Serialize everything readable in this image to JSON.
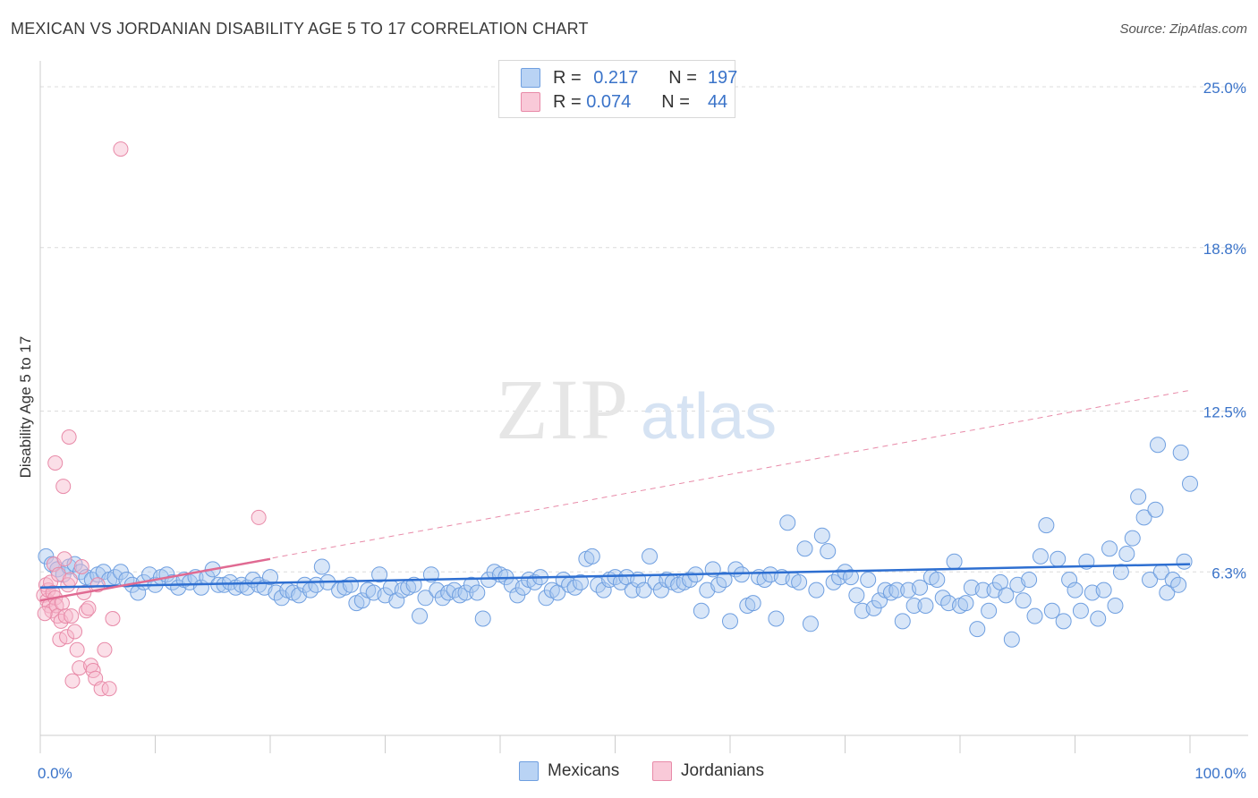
{
  "title": "MEXICAN VS JORDANIAN DISABILITY AGE 5 TO 17 CORRELATION CHART",
  "source": "Source: ZipAtlas.com",
  "watermark": {
    "zip": "ZIP",
    "atlas": "atlas"
  },
  "legend": {
    "rows": [
      {
        "r_label": "R =",
        "r_value": "0.217",
        "n_label": "N =",
        "n_value": "197"
      },
      {
        "r_label": "R =",
        "r_value": "0.074",
        "n_label": "N =",
        "n_value": "44"
      }
    ]
  },
  "bottom_legend": {
    "mexicans": "Mexicans",
    "jordanians": "Jordanians"
  },
  "colors": {
    "mexicans_fill": "#a9c8f0",
    "mexicans_stroke": "#6f9fe0",
    "mexicans_line": "#2e6fd1",
    "jordanians_fill": "#f6b8cb",
    "jordanians_stroke": "#e88aa8",
    "jordanians_line": "#e06a92",
    "tick_label": "#3a73c9",
    "grid": "#dcdcdc"
  },
  "chart_data": {
    "type": "scatter",
    "title": "MEXICAN VS JORDANIAN DISABILITY AGE 5 TO 17 CORRELATION CHART",
    "xlabel": "",
    "ylabel": "Disability Age 5 to 17",
    "xlim": [
      0,
      100
    ],
    "ylim": [
      0,
      25.0
    ],
    "x_tick_labels": [
      "0.0%",
      "100.0%"
    ],
    "y_ticks": [
      6.3,
      12.5,
      18.8,
      25.0
    ],
    "y_tick_labels": [
      "6.3%",
      "12.5%",
      "18.8%",
      "25.0%"
    ],
    "grid": "horizontal dashed",
    "legend_position": "top-center",
    "series": [
      {
        "name": "Mexicans",
        "r": 0.217,
        "n": 197,
        "trend": {
          "x": [
            0,
            100
          ],
          "y": [
            5.7,
            6.6
          ]
        },
        "points": [
          [
            0.5,
            6.9
          ],
          [
            1,
            6.6
          ],
          [
            1.5,
            6.4
          ],
          [
            2,
            6.2
          ],
          [
            2.5,
            6.5
          ],
          [
            3,
            6.6
          ],
          [
            3.5,
            6.3
          ],
          [
            4,
            6.1
          ],
          [
            4.5,
            6.0
          ],
          [
            5,
            6.2
          ],
          [
            5.5,
            6.3
          ],
          [
            6,
            6.0
          ],
          [
            6.5,
            6.1
          ],
          [
            7,
            6.3
          ],
          [
            7.5,
            6.0
          ],
          [
            8,
            5.8
          ],
          [
            8.5,
            5.5
          ],
          [
            9,
            5.9
          ],
          [
            9.5,
            6.2
          ],
          [
            10,
            5.8
          ],
          [
            10.5,
            6.1
          ],
          [
            11,
            6.2
          ],
          [
            11.5,
            5.9
          ],
          [
            12,
            5.7
          ],
          [
            12.5,
            6.0
          ],
          [
            13,
            5.9
          ],
          [
            13.5,
            6.1
          ],
          [
            14,
            5.7
          ],
          [
            14.5,
            6.1
          ],
          [
            15,
            6.4
          ],
          [
            15.5,
            5.8
          ],
          [
            16,
            5.8
          ],
          [
            16.5,
            5.9
          ],
          [
            17,
            5.7
          ],
          [
            17.5,
            5.8
          ],
          [
            18,
            5.7
          ],
          [
            18.5,
            6.0
          ],
          [
            19,
            5.8
          ],
          [
            19.5,
            5.7
          ],
          [
            20,
            6.1
          ],
          [
            20.5,
            5.5
          ],
          [
            21,
            5.3
          ],
          [
            21.5,
            5.6
          ],
          [
            22,
            5.5
          ],
          [
            22.5,
            5.4
          ],
          [
            23,
            5.8
          ],
          [
            23.5,
            5.6
          ],
          [
            24,
            5.8
          ],
          [
            24.5,
            6.5
          ],
          [
            25,
            5.9
          ],
          [
            26,
            5.6
          ],
          [
            26.5,
            5.7
          ],
          [
            27,
            5.8
          ],
          [
            27.5,
            5.1
          ],
          [
            28,
            5.2
          ],
          [
            28.5,
            5.6
          ],
          [
            29,
            5.5
          ],
          [
            29.5,
            6.2
          ],
          [
            30,
            5.4
          ],
          [
            30.5,
            5.7
          ],
          [
            31,
            5.2
          ],
          [
            31.5,
            5.6
          ],
          [
            32,
            5.7
          ],
          [
            32.5,
            5.8
          ],
          [
            33,
            4.6
          ],
          [
            33.5,
            5.3
          ],
          [
            34,
            6.2
          ],
          [
            34.5,
            5.6
          ],
          [
            35,
            5.3
          ],
          [
            35.5,
            5.5
          ],
          [
            36,
            5.6
          ],
          [
            36.5,
            5.4
          ],
          [
            37,
            5.5
          ],
          [
            37.5,
            5.8
          ],
          [
            38,
            5.5
          ],
          [
            38.5,
            4.5
          ],
          [
            39,
            6.0
          ],
          [
            39.5,
            6.3
          ],
          [
            40,
            6.2
          ],
          [
            40.5,
            6.1
          ],
          [
            41,
            5.8
          ],
          [
            41.5,
            5.4
          ],
          [
            42,
            5.7
          ],
          [
            42.5,
            6.0
          ],
          [
            43,
            5.9
          ],
          [
            43.5,
            6.1
          ],
          [
            44,
            5.3
          ],
          [
            44.5,
            5.6
          ],
          [
            45,
            5.5
          ],
          [
            45.5,
            6.0
          ],
          [
            46,
            5.8
          ],
          [
            46.5,
            5.7
          ],
          [
            47,
            5.9
          ],
          [
            47.5,
            6.8
          ],
          [
            48,
            6.9
          ],
          [
            48.5,
            5.8
          ],
          [
            49,
            5.6
          ],
          [
            49.5,
            6.0
          ],
          [
            50,
            6.1
          ],
          [
            50.5,
            5.9
          ],
          [
            51,
            6.1
          ],
          [
            51.5,
            5.6
          ],
          [
            52,
            6.0
          ],
          [
            52.5,
            5.6
          ],
          [
            53,
            6.9
          ],
          [
            53.5,
            5.9
          ],
          [
            54,
            5.6
          ],
          [
            54.5,
            6.0
          ],
          [
            55,
            5.9
          ],
          [
            55.5,
            5.8
          ],
          [
            56,
            5.9
          ],
          [
            56.5,
            6.0
          ],
          [
            57,
            6.2
          ],
          [
            57.5,
            4.8
          ],
          [
            58,
            5.6
          ],
          [
            58.5,
            6.4
          ],
          [
            59,
            5.8
          ],
          [
            59.5,
            6.0
          ],
          [
            60,
            4.4
          ],
          [
            60.5,
            6.4
          ],
          [
            61,
            6.2
          ],
          [
            61.5,
            5.0
          ],
          [
            62,
            5.1
          ],
          [
            62.5,
            6.1
          ],
          [
            63,
            6.0
          ],
          [
            63.5,
            6.2
          ],
          [
            64,
            4.5
          ],
          [
            64.5,
            6.1
          ],
          [
            65,
            8.2
          ],
          [
            65.5,
            6.0
          ],
          [
            66,
            5.9
          ],
          [
            66.5,
            7.2
          ],
          [
            67,
            4.3
          ],
          [
            67.5,
            5.6
          ],
          [
            68,
            7.7
          ],
          [
            68.5,
            7.1
          ],
          [
            69,
            5.9
          ],
          [
            69.5,
            6.1
          ],
          [
            70,
            6.3
          ],
          [
            70.5,
            6.1
          ],
          [
            71,
            5.4
          ],
          [
            71.5,
            4.8
          ],
          [
            72,
            6.0
          ],
          [
            72.5,
            4.9
          ],
          [
            73,
            5.2
          ],
          [
            73.5,
            5.6
          ],
          [
            74,
            5.5
          ],
          [
            74.5,
            5.6
          ],
          [
            75,
            4.4
          ],
          [
            75.5,
            5.6
          ],
          [
            76,
            5.0
          ],
          [
            76.5,
            5.7
          ],
          [
            77,
            5.0
          ],
          [
            77.5,
            6.1
          ],
          [
            78,
            6.0
          ],
          [
            78.5,
            5.3
          ],
          [
            79,
            5.1
          ],
          [
            79.5,
            6.7
          ],
          [
            80,
            5.0
          ],
          [
            80.5,
            5.1
          ],
          [
            81,
            5.7
          ],
          [
            81.5,
            4.1
          ],
          [
            82,
            5.6
          ],
          [
            82.5,
            4.8
          ],
          [
            83,
            5.6
          ],
          [
            83.5,
            5.9
          ],
          [
            84,
            5.4
          ],
          [
            84.5,
            3.7
          ],
          [
            85,
            5.8
          ],
          [
            85.5,
            5.2
          ],
          [
            86,
            6.0
          ],
          [
            86.5,
            4.6
          ],
          [
            87,
            6.9
          ],
          [
            87.5,
            8.1
          ],
          [
            88,
            4.8
          ],
          [
            88.5,
            6.8
          ],
          [
            89,
            4.4
          ],
          [
            89.5,
            6.0
          ],
          [
            90,
            5.6
          ],
          [
            90.5,
            4.8
          ],
          [
            91,
            6.7
          ],
          [
            91.5,
            5.5
          ],
          [
            92,
            4.5
          ],
          [
            92.5,
            5.6
          ],
          [
            93,
            7.2
          ],
          [
            93.5,
            5.0
          ],
          [
            94,
            6.3
          ],
          [
            94.5,
            7.0
          ],
          [
            95,
            7.6
          ],
          [
            95.5,
            9.2
          ],
          [
            96,
            8.4
          ],
          [
            96.5,
            6.0
          ],
          [
            97,
            8.7
          ],
          [
            97.5,
            6.3
          ],
          [
            98,
            5.5
          ],
          [
            98.5,
            6.0
          ],
          [
            99,
            5.8
          ],
          [
            99.5,
            6.7
          ],
          [
            100,
            9.7
          ],
          [
            99.2,
            10.9
          ],
          [
            97.2,
            11.2
          ]
        ]
      },
      {
        "name": "Jordanians",
        "r": 0.074,
        "n": 44,
        "trend": {
          "x": [
            0,
            20
          ],
          "y": [
            5.2,
            6.8
          ]
        },
        "trend_extended": {
          "x": [
            0,
            100
          ],
          "y": [
            5.2,
            13.3
          ]
        },
        "points": [
          [
            0.3,
            5.4
          ],
          [
            0.5,
            5.8
          ],
          [
            0.6,
            5.2
          ],
          [
            0.7,
            5.6
          ],
          [
            0.8,
            5.0
          ],
          [
            0.9,
            5.9
          ],
          [
            1.0,
            4.8
          ],
          [
            1.1,
            5.5
          ],
          [
            1.2,
            6.6
          ],
          [
            1.3,
            5.3
          ],
          [
            1.4,
            5.0
          ],
          [
            1.5,
            4.6
          ],
          [
            1.6,
            6.2
          ],
          [
            1.7,
            3.7
          ],
          [
            1.8,
            4.4
          ],
          [
            1.9,
            5.1
          ],
          [
            2.0,
            9.6
          ],
          [
            2.1,
            6.8
          ],
          [
            2.2,
            4.6
          ],
          [
            2.3,
            3.8
          ],
          [
            2.4,
            5.8
          ],
          [
            2.5,
            11.5
          ],
          [
            2.6,
            6.0
          ],
          [
            2.7,
            4.6
          ],
          [
            2.8,
            2.1
          ],
          [
            3.0,
            4.0
          ],
          [
            3.2,
            3.3
          ],
          [
            3.4,
            2.6
          ],
          [
            3.6,
            6.5
          ],
          [
            3.8,
            5.5
          ],
          [
            4.0,
            4.8
          ],
          [
            4.2,
            4.9
          ],
          [
            4.4,
            2.7
          ],
          [
            4.6,
            2.5
          ],
          [
            4.8,
            2.2
          ],
          [
            5.0,
            5.8
          ],
          [
            5.3,
            1.8
          ],
          [
            5.6,
            3.3
          ],
          [
            6.0,
            1.8
          ],
          [
            6.3,
            4.5
          ],
          [
            1.3,
            10.5
          ],
          [
            7.0,
            22.6
          ],
          [
            19.0,
            8.4
          ],
          [
            0.4,
            4.7
          ]
        ]
      }
    ]
  }
}
